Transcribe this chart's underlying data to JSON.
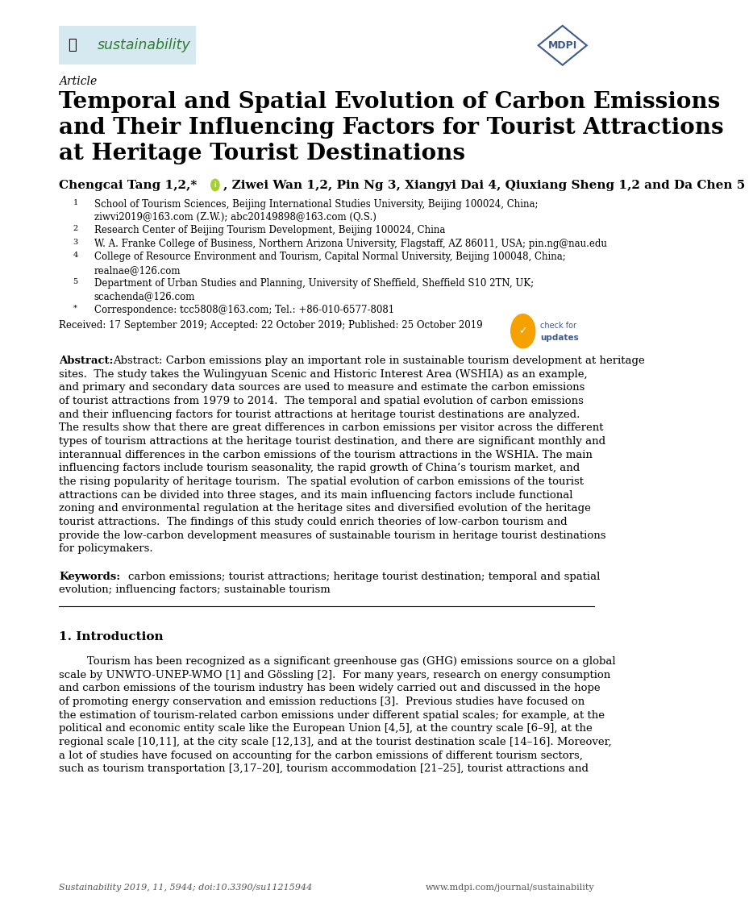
{
  "bg_color": "#ffffff",
  "page_width": 10.2,
  "page_height": 14.42,
  "journal_name": "sustainability",
  "article_label": "Article",
  "title_line1": "Temporal and Spatial Evolution of Carbon Emissions",
  "title_line2": "and Their Influencing Factors for Tourist Attractions",
  "title_line3": "at Heritage Tourist Destinations",
  "authors_part1": "Chengcai Tang 1,2,*",
  "authors_part2": ", Ziwei Wan 1,2, Pin Ng 3, Xiangyi Dai 4, Qiuxiang Sheng 1,2 and Da Chen 5",
  "affil1_num": "1",
  "affil1_text": "School of Tourism Sciences, Beijing International Studies University, Beijing 100024, China;",
  "affil1b_text": "ziwvi2019@163.com (Z.W.); abc20149898@163.com (Q.S.)",
  "affil2_num": "2",
  "affil2_text": "Research Center of Beijing Tourism Development, Beijing 100024, China",
  "affil3_num": "3",
  "affil3_text": "W. A. Franke College of Business, Northern Arizona University, Flagstaff, AZ 86011, USA; pin.ng@nau.edu",
  "affil4_num": "4",
  "affil4_text": "College of Resource Environment and Tourism, Capital Normal University, Beijing 100048, China;",
  "affil4b_text": "realnae@126.com",
  "affil5_num": "5",
  "affil5_text": "Department of Urban Studies and Planning, University of Sheffield, Sheffield S10 2TN, UK;",
  "affil5b_text": "scachenda@126.com",
  "affil_star_text": "Correspondence: tcc5808@163.com; Tel.: +86-010-6577-8081",
  "received_line": "Received: 17 September 2019; Accepted: 22 October 2019; Published: 25 October 2019",
  "abstract_lines": [
    "Abstract: Carbon emissions play an important role in sustainable tourism development at heritage",
    "sites.  The study takes the Wulingyuan Scenic and Historic Interest Area (WSHIA) as an example,",
    "and primary and secondary data sources are used to measure and estimate the carbon emissions",
    "of tourist attractions from 1979 to 2014.  The temporal and spatial evolution of carbon emissions",
    "and their influencing factors for tourist attractions at heritage tourist destinations are analyzed.",
    "The results show that there are great differences in carbon emissions per visitor across the different",
    "types of tourism attractions at the heritage tourist destination, and there are significant monthly and",
    "interannual differences in the carbon emissions of the tourism attractions in the WSHIA. The main",
    "influencing factors include tourism seasonality, the rapid growth of China’s tourism market, and",
    "the rising popularity of heritage tourism.  The spatial evolution of carbon emissions of the tourist",
    "attractions can be divided into three stages, and its main influencing factors include functional",
    "zoning and environmental regulation at the heritage sites and diversified evolution of the heritage",
    "tourist attractions.  The findings of this study could enrich theories of low-carbon tourism and",
    "provide the low-carbon development measures of sustainable tourism in heritage tourist destinations",
    "for policymakers."
  ],
  "keywords_line1": "Keywords: carbon emissions; tourist attractions; heritage tourist destination; temporal and spatial",
  "keywords_line2": "evolution; influencing factors; sustainable tourism",
  "section1_title": "1. Introduction",
  "intro_lines": [
    "Tourism has been recognized as a significant greenhouse gas (GHG) emissions source on a global",
    "scale by UNWTO-UNEP-WMO [1] and Gössling [2].  For many years, research on energy consumption",
    "and carbon emissions of the tourism industry has been widely carried out and discussed in the hope",
    "of promoting energy conservation and emission reductions [3].  Previous studies have focused on",
    "the estimation of tourism-related carbon emissions under different spatial scales; for example, at the",
    "political and economic entity scale like the European Union [4,5], at the country scale [6–9], at the",
    "regional scale [10,11], at the city scale [12,13], and at the tourist destination scale [14–16]. Moreover,",
    "a lot of studies have focused on accounting for the carbon emissions of different tourism sectors,",
    "such as tourism transportation [3,17–20], tourism accommodation [21–25], tourist attractions and"
  ],
  "footer_left": "Sustainability 2019, 11, 5944; doi:10.3390/su11215944",
  "footer_right": "www.mdpi.com/journal/sustainability",
  "logo_bg_color": "#d6e8f0",
  "logo_text_color": "#2e7d32",
  "mdpi_color": "#3d5a8a",
  "body_fontsize": 9.5,
  "affil_fontsize": 8.5,
  "small_fontsize": 8.0
}
